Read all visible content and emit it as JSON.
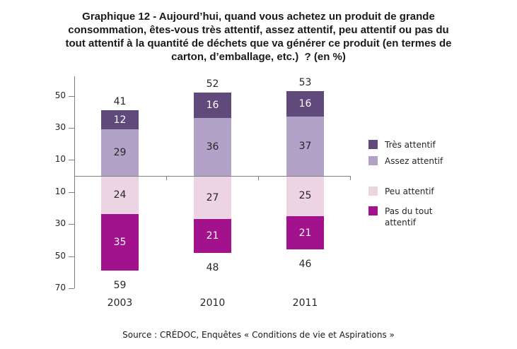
{
  "title_lines": [
    "Graphique 12 - Aujourd’hui, quand vous achetez un produit de grande",
    "consommation, êtes-vous très attentif, assez attentif, peu attentif ou pas du",
    "tout attentif à la quantité de déchets que va générer ce produit (en termes de",
    "carton, d’emballage, etc.)  ? (en %)"
  ],
  "source": "Source : CRÉDOC, Enquêtes « Conditions de vie et Aspirations »",
  "chart_data": {
    "type": "bar",
    "variant": "diverging_stacked_column",
    "title": "Graphique 12 - Aujourd’hui, quand vous achetez un produit de grande consommation, êtes-vous très attentif, assez attentif, peu attentif ou pas du tout attentif à la quantité de déchets que va générer ce produit (en termes de carton, d’emballage, etc.) ? (en %)",
    "unit": "%",
    "categories": [
      "2003",
      "2010",
      "2011"
    ],
    "series": [
      {
        "name": "Très attentif",
        "color": "#604a7b",
        "label_color": "#ffffff",
        "direction": "positive",
        "values": [
          12,
          16,
          16
        ]
      },
      {
        "name": "Assez attentif",
        "color": "#b2a2c7",
        "label_color": "#262626",
        "direction": "positive",
        "values": [
          29,
          36,
          37
        ]
      },
      {
        "name": "Peu attentif",
        "color": "#ecd4e2",
        "label_color": "#262626",
        "direction": "negative",
        "values": [
          24,
          27,
          25
        ]
      },
      {
        "name": "Pas du tout attentif",
        "color": "#a1128c",
        "label_color": "#ffffff",
        "direction": "negative",
        "values": [
          35,
          21,
          21
        ]
      }
    ],
    "totals_above": [
      41,
      52,
      53
    ],
    "totals_below": [
      59,
      48,
      46
    ],
    "y_ticks": [
      50,
      30,
      10,
      -10,
      -30,
      -50,
      -70
    ],
    "y_tick_labels": [
      "50",
      "30",
      "10",
      "10",
      "30",
      "50",
      "70"
    ],
    "ylim": [
      -70,
      62
    ],
    "grid": "off",
    "legend_position": "right",
    "legend": [
      {
        "label": "Très attentif",
        "color": "#604a7b"
      },
      {
        "label": "Assez attentif",
        "color": "#b2a2c7"
      },
      {
        "label": "Peu attentif",
        "color": "#ecd4e2"
      },
      {
        "label": "Pas du tout attentif",
        "color": "#a1128c"
      }
    ]
  }
}
